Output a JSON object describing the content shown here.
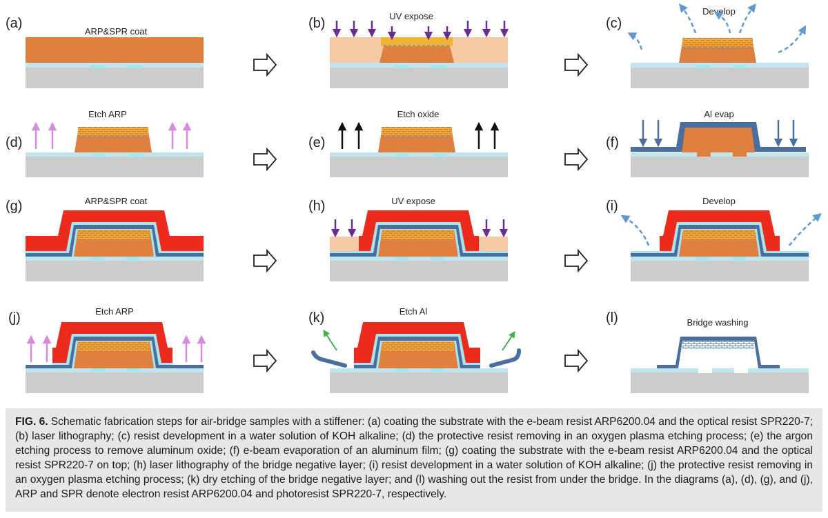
{
  "colors": {
    "substrate": "#cccccc",
    "oxide": "#bfe6ee",
    "cyan": "#9fe8f0",
    "arp": "#e0803e",
    "arp_exposed": "#f5c9a3",
    "spr": "#f2b531",
    "spr_red": "#ed2b1d",
    "aluminum": "#4a6f9e",
    "arrow_uv": "#6a2d91",
    "arrow_plasma": "#d78be0",
    "arrow_black": "#111111",
    "arrow_dashed": "#5d9ad3",
    "arrow_green": "#3ab54a"
  },
  "panels": [
    {
      "letter": "(a)",
      "label": "ARP&SPR coat"
    },
    {
      "letter": "(b)",
      "label": "UV  expose"
    },
    {
      "letter": "(c)",
      "label": "Develop"
    },
    {
      "letter": "(d)",
      "label": "Etch ARP"
    },
    {
      "letter": "(e)",
      "label": "Etch oxide"
    },
    {
      "letter": "(f)",
      "label": "Al evap"
    },
    {
      "letter": "(g)",
      "label": "ARP&SPR coat"
    },
    {
      "letter": "(h)",
      "label": "UV  expose"
    },
    {
      "letter": "(i)",
      "label": "Develop"
    },
    {
      "letter": "(j)",
      "label": "Etch ARP"
    },
    {
      "letter": "(k)",
      "label": "Etch Al"
    },
    {
      "letter": "(l)",
      "label": "Bridge washing"
    }
  ],
  "caption": {
    "label": "FIG. 6.",
    "text": "Schematic fabrication steps for air-bridge samples with a stiffener: (a) coating the substrate with the e-beam resist ARP6200.04 and the optical resist SPR220-7; (b) laser lithography; (c) resist development in a water solution of KOH alkaline; (d) the protective resist removing in an oxygen plasma etching process; (e) the argon etching process to remove aluminum oxide; (f) e-beam evaporation of an aluminum film; (g) coating the substrate with the e-beam resist ARP6200.04 and the optical resist SPR220-7 on top; (h) laser lithography of the bridge negative layer; (i) resist development in a water solution of KOH alkaline; (j) the protective resist removing in an oxygen plasma etching process; (k) dry etching of the bridge negative layer; and (l) washing out the resist from under the bridge. In the diagrams (a), (d), (g), and (j), ARP and SPR denote electron resist ARP6200.04 and photoresist SPR220-7, respectively."
  }
}
